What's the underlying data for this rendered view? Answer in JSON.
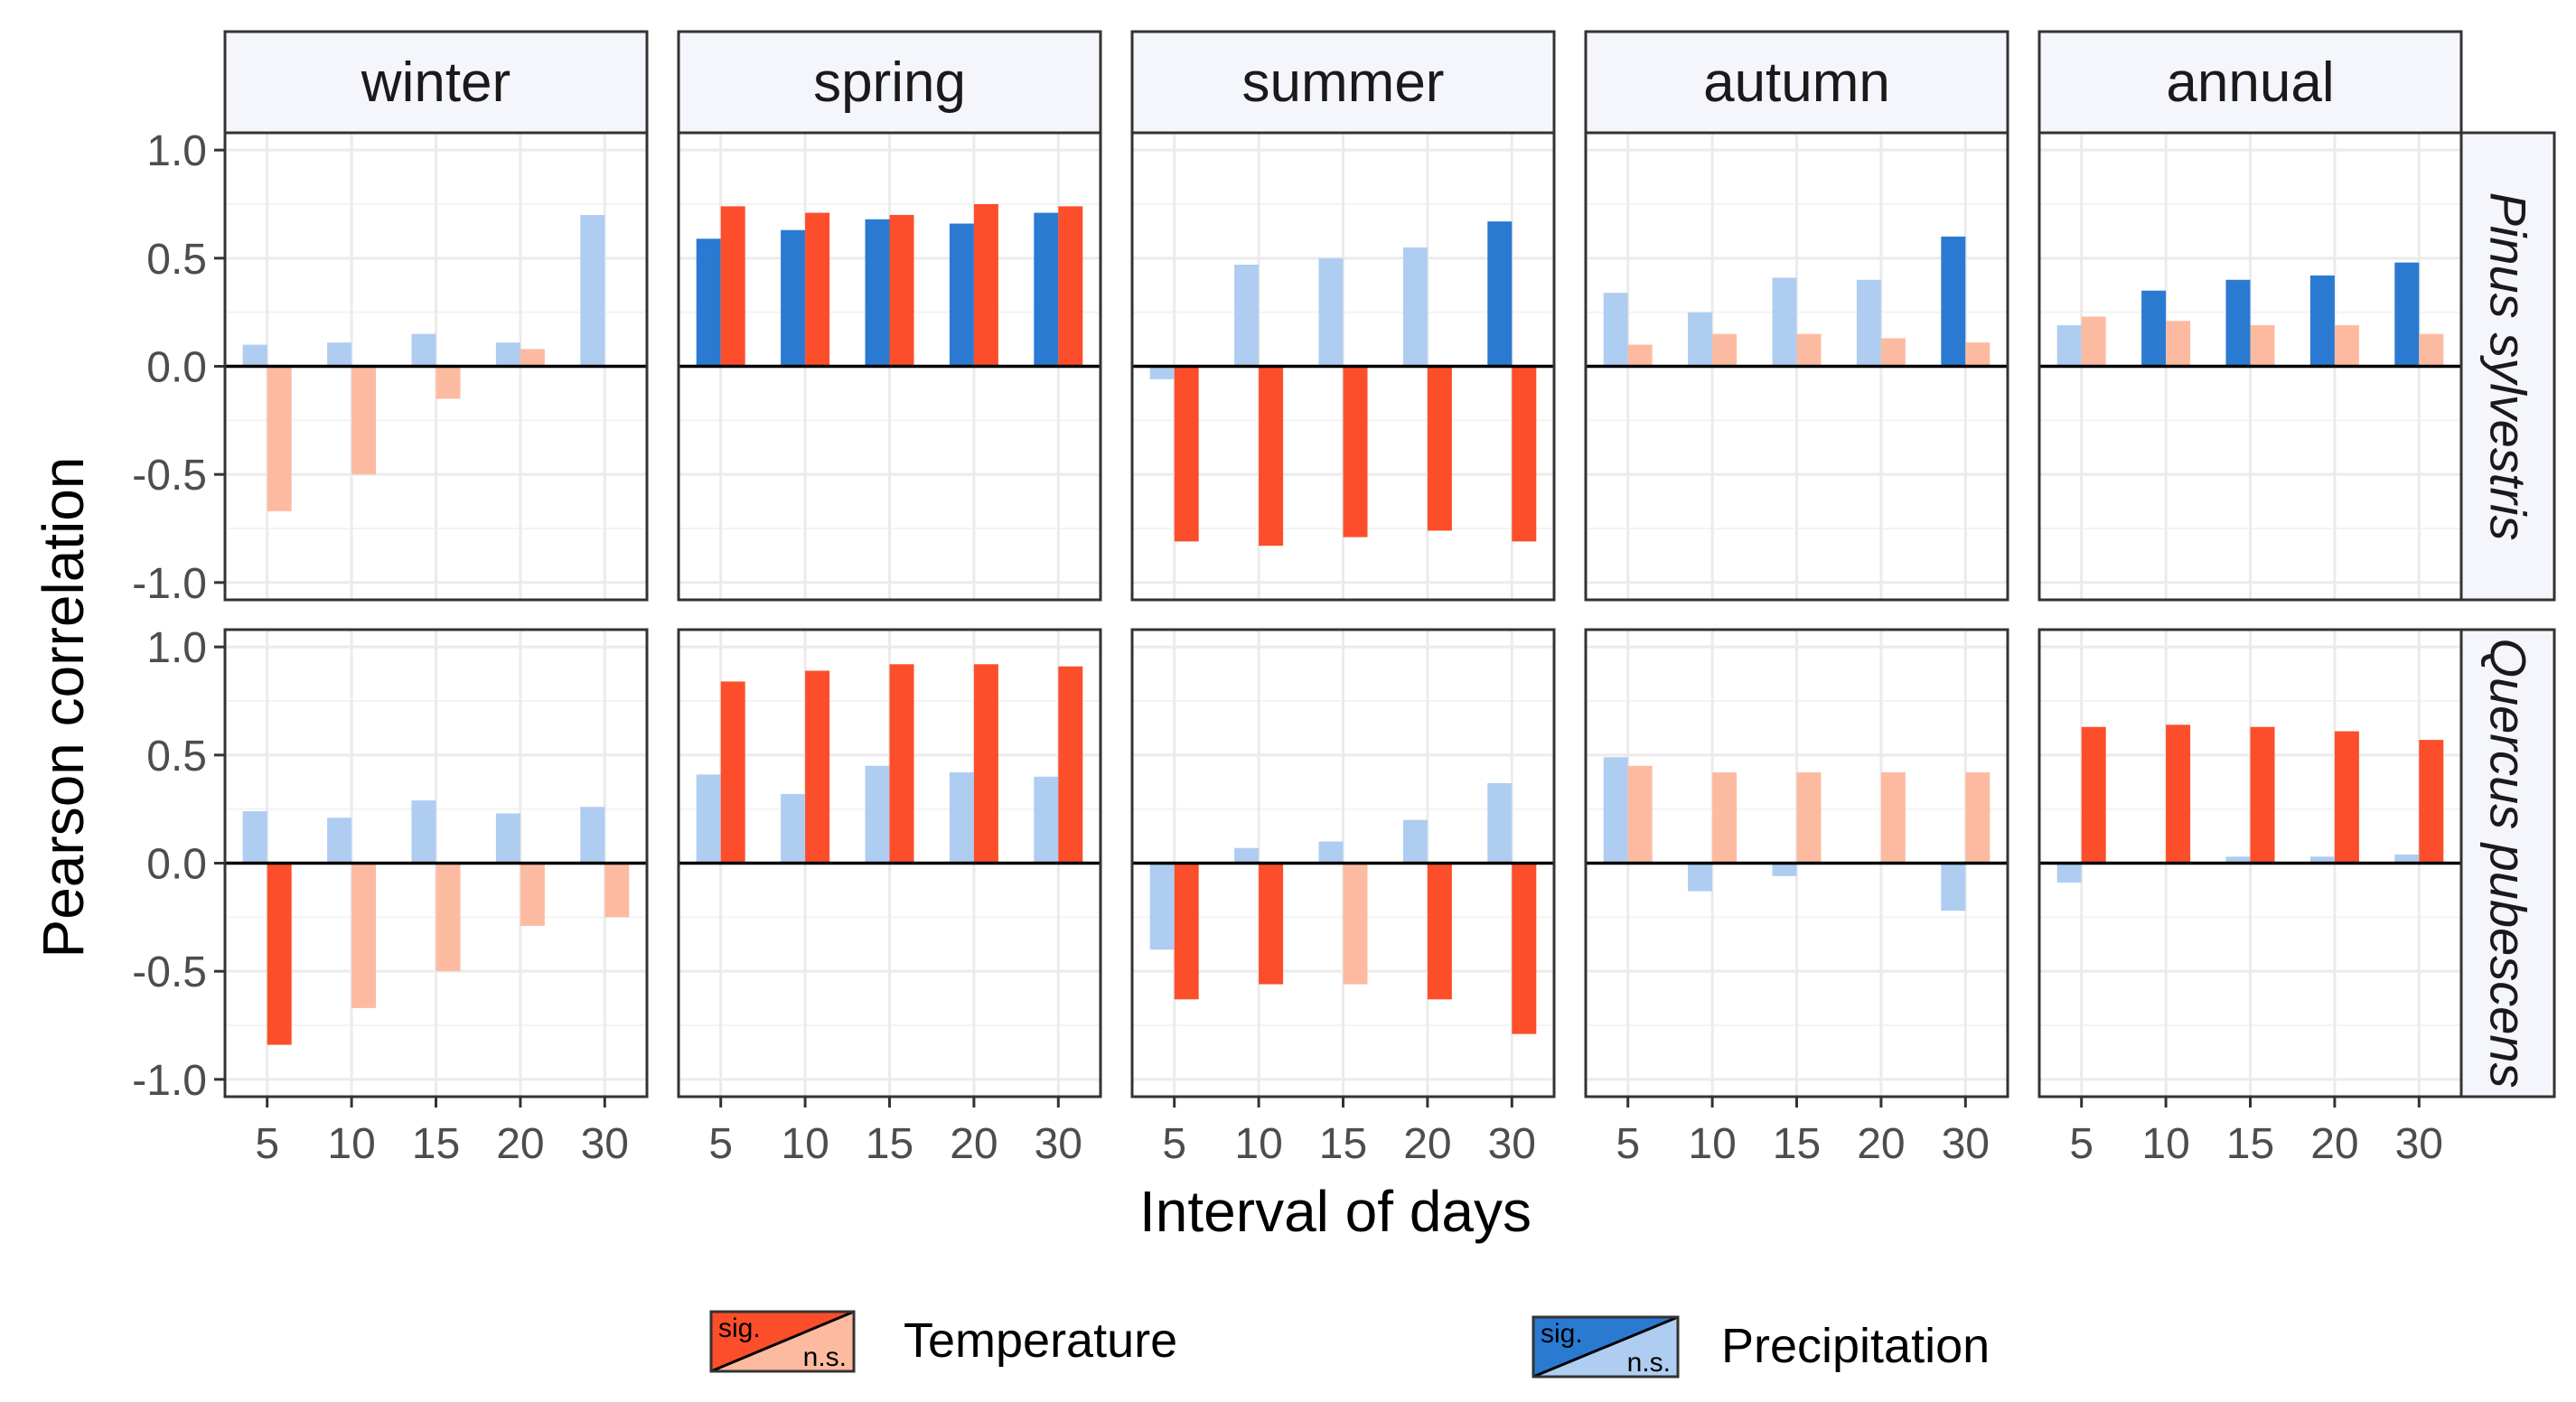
{
  "chart_data": {
    "type": "bar",
    "title": "",
    "xlabel": "Interval of days",
    "ylabel": "Pearson correlation",
    "ylim": [
      -1.08,
      1.08
    ],
    "yticks": [
      -1.0,
      -0.5,
      0.0,
      0.5,
      1.0
    ],
    "ytick_labels": [
      "-1.0",
      "-0.5",
      "0.0",
      "0.5",
      "1.0"
    ],
    "categories": [
      "5",
      "10",
      "15",
      "20",
      "30"
    ],
    "facet_columns": [
      "winter",
      "spring",
      "summer",
      "autumn",
      "annual"
    ],
    "facet_rows": [
      "Pinus sylvestris",
      "Quercus pubescens"
    ],
    "series_names": [
      "Precipitation",
      "Temperature"
    ],
    "legend": {
      "position": "bottom",
      "items": [
        {
          "name": "Temperature",
          "sig_label": "sig.",
          "ns_label": "n.s.",
          "sig_color": "#fc4e2a",
          "ns_color": "#fcbba1"
        },
        {
          "name": "Precipitation",
          "sig_label": "sig.",
          "ns_label": "n.s.",
          "sig_color": "#2a7ad2",
          "ns_color": "#aecdf0"
        }
      ]
    },
    "colors": {
      "temperature_sig": "#fc4e2a",
      "temperature_ns": "#fcbba1",
      "precipitation_sig": "#2a7ad2",
      "precipitation_ns": "#aecdf0",
      "grid": "#ebebeb",
      "strip_bg": "#f4f6fc",
      "zero_line": "#000000"
    },
    "panels": [
      {
        "row": "Pinus sylvestris",
        "column": "winter",
        "precipitation": {
          "values": [
            0.1,
            0.11,
            0.15,
            0.11,
            0.7
          ],
          "sig": [
            false,
            false,
            false,
            false,
            false
          ]
        },
        "temperature": {
          "values": [
            -0.67,
            -0.5,
            -0.15,
            0.08,
            null
          ],
          "sig": [
            false,
            false,
            false,
            false,
            false
          ]
        }
      },
      {
        "row": "Pinus sylvestris",
        "column": "spring",
        "precipitation": {
          "values": [
            0.59,
            0.63,
            0.68,
            0.66,
            0.71
          ],
          "sig": [
            true,
            true,
            true,
            true,
            true
          ]
        },
        "temperature": {
          "values": [
            0.74,
            0.71,
            0.7,
            0.75,
            0.74
          ],
          "sig": [
            true,
            true,
            true,
            true,
            true
          ]
        }
      },
      {
        "row": "Pinus sylvestris",
        "column": "summer",
        "precipitation": {
          "values": [
            -0.06,
            0.47,
            0.5,
            0.55,
            0.67
          ],
          "sig": [
            false,
            false,
            false,
            false,
            true
          ]
        },
        "temperature": {
          "values": [
            -0.81,
            -0.83,
            -0.79,
            -0.76,
            -0.81
          ],
          "sig": [
            true,
            true,
            true,
            true,
            true
          ]
        }
      },
      {
        "row": "Pinus sylvestris",
        "column": "autumn",
        "precipitation": {
          "values": [
            0.34,
            0.25,
            0.41,
            0.4,
            0.6
          ],
          "sig": [
            false,
            false,
            false,
            false,
            true
          ]
        },
        "temperature": {
          "values": [
            0.1,
            0.15,
            0.15,
            0.13,
            0.11
          ],
          "sig": [
            false,
            false,
            false,
            false,
            false
          ]
        }
      },
      {
        "row": "Pinus sylvestris",
        "column": "annual",
        "precipitation": {
          "values": [
            0.19,
            0.35,
            0.4,
            0.42,
            0.48
          ],
          "sig": [
            false,
            true,
            true,
            true,
            true
          ]
        },
        "temperature": {
          "values": [
            0.23,
            0.21,
            0.19,
            0.19,
            0.15
          ],
          "sig": [
            false,
            false,
            false,
            false,
            false
          ]
        }
      },
      {
        "row": "Quercus pubescens",
        "column": "winter",
        "precipitation": {
          "values": [
            0.24,
            0.21,
            0.29,
            0.23,
            0.26
          ],
          "sig": [
            false,
            false,
            false,
            false,
            false
          ]
        },
        "temperature": {
          "values": [
            -0.84,
            -0.67,
            -0.5,
            -0.29,
            -0.25
          ],
          "sig": [
            true,
            false,
            false,
            false,
            false
          ]
        }
      },
      {
        "row": "Quercus pubescens",
        "column": "spring",
        "precipitation": {
          "values": [
            0.41,
            0.32,
            0.45,
            0.42,
            0.4
          ],
          "sig": [
            false,
            false,
            false,
            false,
            false
          ]
        },
        "temperature": {
          "values": [
            0.84,
            0.89,
            0.92,
            0.92,
            0.91
          ],
          "sig": [
            true,
            true,
            true,
            true,
            true
          ]
        }
      },
      {
        "row": "Quercus pubescens",
        "column": "summer",
        "precipitation": {
          "values": [
            -0.4,
            0.07,
            0.1,
            0.2,
            0.37
          ],
          "sig": [
            false,
            false,
            false,
            false,
            false
          ]
        },
        "temperature": {
          "values": [
            -0.63,
            -0.56,
            -0.56,
            -0.63,
            -0.79
          ],
          "sig": [
            true,
            true,
            false,
            true,
            true
          ]
        }
      },
      {
        "row": "Quercus pubescens",
        "column": "autumn",
        "precipitation": {
          "values": [
            0.49,
            -0.13,
            -0.06,
            null,
            -0.22
          ],
          "sig": [
            false,
            false,
            false,
            false,
            false
          ]
        },
        "temperature": {
          "values": [
            0.45,
            0.42,
            0.42,
            0.42,
            0.42
          ],
          "sig": [
            false,
            false,
            false,
            false,
            false
          ]
        }
      },
      {
        "row": "Quercus pubescens",
        "column": "annual",
        "precipitation": {
          "values": [
            -0.09,
            null,
            0.03,
            0.03,
            0.04
          ],
          "sig": [
            false,
            false,
            false,
            false,
            false
          ]
        },
        "temperature": {
          "values": [
            0.63,
            0.64,
            0.63,
            0.61,
            0.57
          ],
          "sig": [
            true,
            true,
            true,
            true,
            true
          ]
        }
      }
    ]
  }
}
